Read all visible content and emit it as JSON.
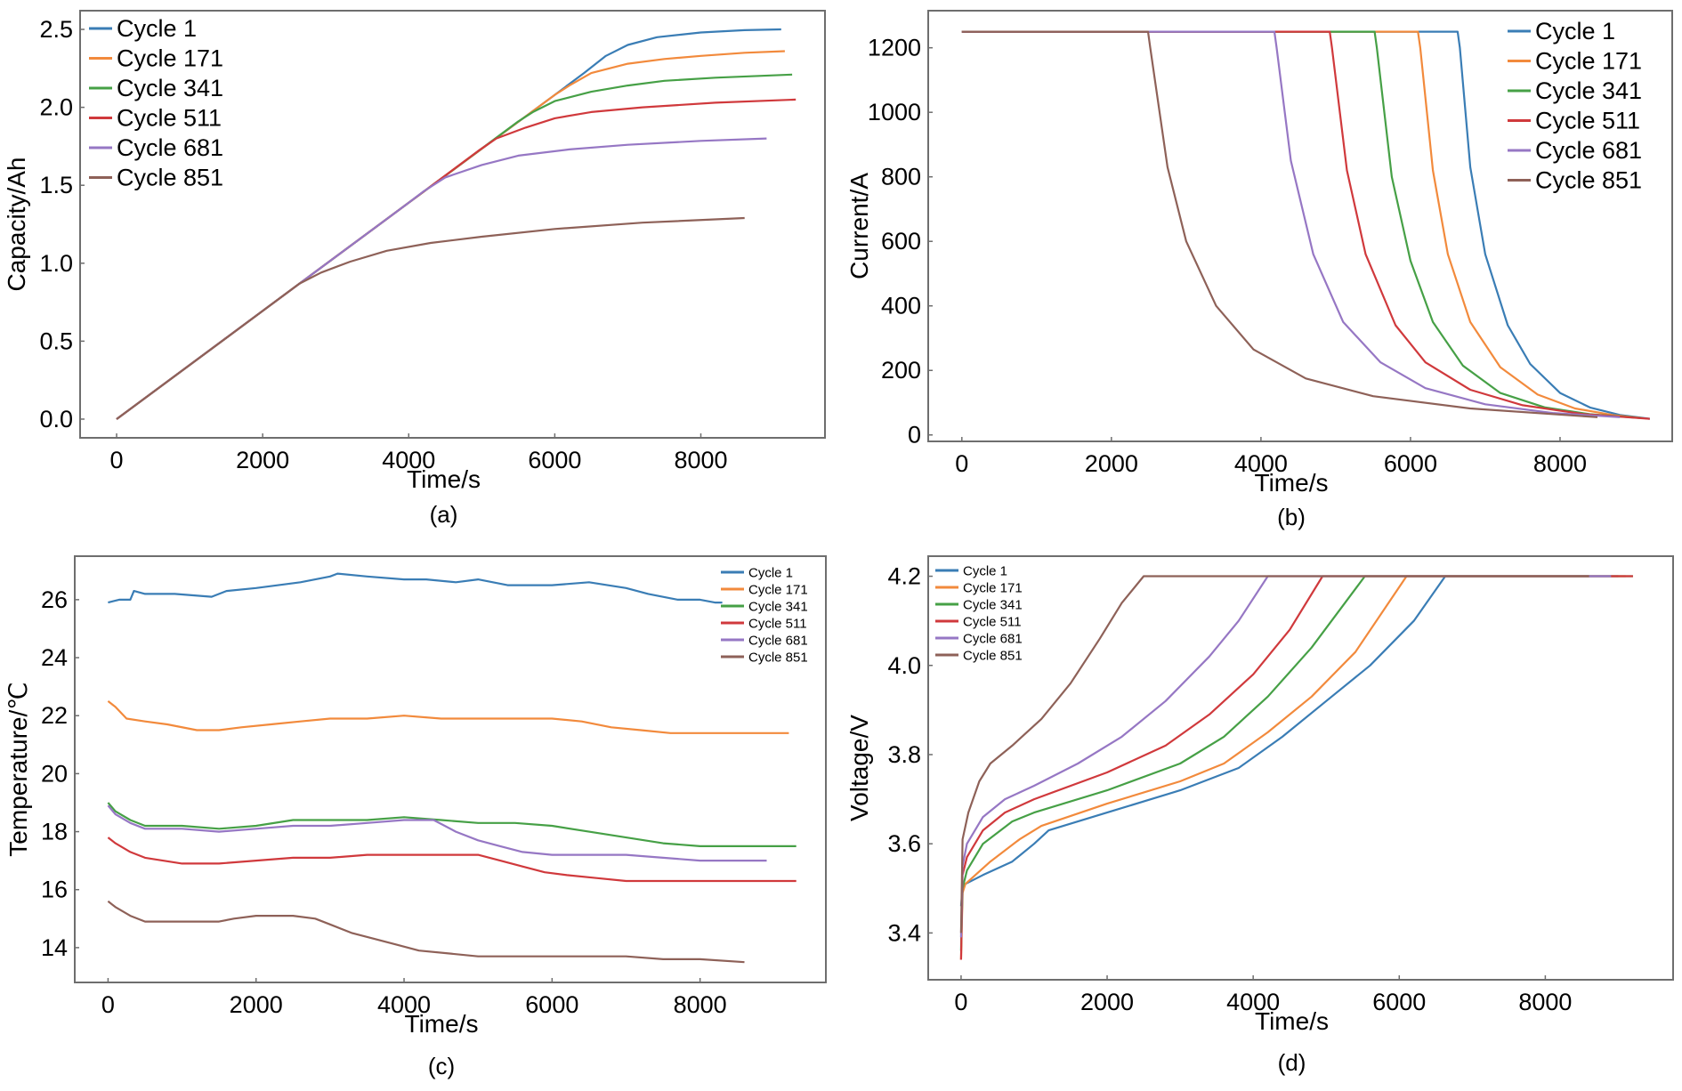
{
  "colors": {
    "Cycle 1": "#3a7db5",
    "Cycle 171": "#f28a3c",
    "Cycle 341": "#46a046",
    "Cycle 511": "#d0393c",
    "Cycle 681": "#9677c4",
    "Cycle 851": "#8e6158"
  },
  "chart_data": [
    {
      "id": "a",
      "type": "line",
      "caption": "(a)",
      "title": "",
      "xlabel": "Time/s",
      "ylabel": "Capacity/Ah",
      "xlim": [
        -500,
        9700
      ],
      "ylim": [
        -0.12,
        2.62
      ],
      "xticks": [
        0,
        2000,
        4000,
        6000,
        8000
      ],
      "xtick_labels": [
        "0",
        "2000",
        "4000",
        "6000",
        "8000"
      ],
      "yticks": [
        0.0,
        0.5,
        1.0,
        1.5,
        2.0,
        2.5
      ],
      "ytick_labels": [
        "0.0",
        "0.5",
        "1.0",
        "1.5",
        "2.0",
        "2.5"
      ],
      "legend_position": "top-left",
      "legend_size": "large",
      "grid": false,
      "series": [
        {
          "name": "Cycle 1",
          "x": [
            0,
            2000,
            4000,
            6000,
            6400,
            6700,
            7000,
            7400,
            8000,
            8600,
            9100
          ],
          "y": [
            0,
            0.694,
            1.388,
            2.08,
            2.22,
            2.33,
            2.4,
            2.45,
            2.48,
            2.495,
            2.5
          ]
        },
        {
          "name": "Cycle 171",
          "x": [
            0,
            2000,
            4000,
            6000,
            6200,
            6500,
            7000,
            7500,
            8000,
            8600,
            9150
          ],
          "y": [
            0,
            0.694,
            1.388,
            2.08,
            2.14,
            2.22,
            2.28,
            2.31,
            2.33,
            2.35,
            2.36
          ]
        },
        {
          "name": "Cycle 341",
          "x": [
            0,
            2000,
            4000,
            5500,
            5700,
            6000,
            6500,
            7000,
            7500,
            8200,
            9250
          ],
          "y": [
            0,
            0.694,
            1.388,
            1.91,
            1.97,
            2.04,
            2.1,
            2.14,
            2.17,
            2.19,
            2.21
          ]
        },
        {
          "name": "Cycle 511",
          "x": [
            0,
            2000,
            4000,
            4950,
            5200,
            5600,
            6000,
            6500,
            7200,
            8200,
            9300
          ],
          "y": [
            0,
            0.694,
            1.388,
            1.72,
            1.8,
            1.87,
            1.93,
            1.97,
            2.0,
            2.03,
            2.05
          ]
        },
        {
          "name": "Cycle 681",
          "x": [
            0,
            2000,
            4000,
            4200,
            4500,
            5000,
            5500,
            6200,
            7000,
            8000,
            8900
          ],
          "y": [
            0,
            0.694,
            1.388,
            1.46,
            1.55,
            1.63,
            1.69,
            1.73,
            1.76,
            1.785,
            1.8
          ]
        },
        {
          "name": "Cycle 851",
          "x": [
            0,
            1500,
            2500,
            2800,
            3200,
            3700,
            4300,
            5000,
            6000,
            7200,
            8600
          ],
          "y": [
            0,
            0.52,
            0.868,
            0.94,
            1.01,
            1.08,
            1.13,
            1.17,
            1.22,
            1.26,
            1.29
          ]
        }
      ]
    },
    {
      "id": "b",
      "type": "line",
      "caption": "(b)",
      "title": "",
      "xlabel": "Time/s",
      "ylabel": "Current/A",
      "xlim": [
        -450,
        9500
      ],
      "ylim": [
        -20,
        1315
      ],
      "xticks": [
        0,
        2000,
        4000,
        6000,
        8000
      ],
      "xtick_labels": [
        "0",
        "2000",
        "4000",
        "6000",
        "8000"
      ],
      "yticks": [
        0,
        200,
        400,
        600,
        800,
        1000,
        1200
      ],
      "ytick_labels": [
        "0",
        "200",
        "400",
        "600",
        "800",
        "1000",
        "1200"
      ],
      "legend_position": "top-right",
      "legend_size": "large",
      "grid": false,
      "series": [
        {
          "name": "Cycle 1",
          "x": [
            0,
            6630,
            6660,
            6800,
            7000,
            7300,
            7600,
            8000,
            8400,
            8800,
            9200
          ],
          "y": [
            1250,
            1250,
            1200,
            830,
            560,
            340,
            220,
            130,
            85,
            62,
            50
          ]
        },
        {
          "name": "Cycle 171",
          "x": [
            0,
            6100,
            6130,
            6300,
            6500,
            6800,
            7200,
            7700,
            8200,
            8700,
            9100
          ],
          "y": [
            1250,
            1250,
            1200,
            820,
            560,
            350,
            210,
            125,
            82,
            62,
            52
          ]
        },
        {
          "name": "Cycle 341",
          "x": [
            0,
            5520,
            5550,
            5750,
            6000,
            6300,
            6700,
            7200,
            7800,
            8400,
            9100
          ],
          "y": [
            1250,
            1250,
            1200,
            800,
            540,
            350,
            215,
            130,
            85,
            64,
            52
          ]
        },
        {
          "name": "Cycle 511",
          "x": [
            0,
            4920,
            4950,
            5150,
            5400,
            5800,
            6200,
            6800,
            7500,
            8300,
            9200
          ],
          "y": [
            1250,
            1250,
            1200,
            820,
            560,
            340,
            225,
            140,
            92,
            65,
            50
          ]
        },
        {
          "name": "Cycle 681",
          "x": [
            0,
            4180,
            4210,
            4400,
            4700,
            5100,
            5600,
            6200,
            7000,
            7900,
            8800
          ],
          "y": [
            1250,
            1250,
            1200,
            850,
            560,
            350,
            225,
            145,
            95,
            68,
            55
          ]
        },
        {
          "name": "Cycle 851",
          "x": [
            0,
            2490,
            2520,
            2750,
            3000,
            3400,
            3900,
            4600,
            5500,
            6800,
            8500
          ],
          "y": [
            1250,
            1250,
            1200,
            830,
            600,
            400,
            265,
            175,
            120,
            82,
            55
          ]
        }
      ]
    },
    {
      "id": "c",
      "type": "line",
      "caption": "(c)",
      "title": "",
      "xlabel": "Time/s",
      "ylabel": "Temperature/℃",
      "xlim": [
        -450,
        9700
      ],
      "ylim": [
        12.8,
        27.5
      ],
      "xticks": [
        0,
        2000,
        4000,
        6000,
        8000
      ],
      "xtick_labels": [
        "0",
        "2000",
        "4000",
        "6000",
        "8000"
      ],
      "yticks": [
        14,
        16,
        18,
        20,
        22,
        24,
        26
      ],
      "ytick_labels": [
        "14",
        "16",
        "18",
        "20",
        "22",
        "24",
        "26"
      ],
      "legend_position": "top-right",
      "legend_size": "small",
      "grid": false,
      "series": [
        {
          "name": "Cycle 1",
          "x": [
            0,
            150,
            300,
            350,
            500,
            900,
            1400,
            1600,
            2000,
            2600,
            3000,
            3100,
            3500,
            4000,
            4300,
            4700,
            5000,
            5400,
            6000,
            6500,
            7000,
            7300,
            7700,
            8000,
            8200,
            8300
          ],
          "y": [
            25.9,
            26.0,
            26.0,
            26.3,
            26.2,
            26.2,
            26.1,
            26.3,
            26.4,
            26.6,
            26.8,
            26.9,
            26.8,
            26.7,
            26.7,
            26.6,
            26.7,
            26.5,
            26.5,
            26.6,
            26.4,
            26.2,
            26.0,
            26.0,
            25.9,
            25.9
          ]
        },
        {
          "name": "Cycle 171",
          "x": [
            0,
            100,
            250,
            500,
            800,
            1200,
            1500,
            1800,
            2200,
            2600,
            3000,
            3500,
            4000,
            4500,
            5000,
            5600,
            6000,
            6400,
            6800,
            7200,
            7600,
            8000,
            8600,
            9200
          ],
          "y": [
            22.5,
            22.3,
            21.9,
            21.8,
            21.7,
            21.5,
            21.5,
            21.6,
            21.7,
            21.8,
            21.9,
            21.9,
            22.0,
            21.9,
            21.9,
            21.9,
            21.9,
            21.8,
            21.6,
            21.5,
            21.4,
            21.4,
            21.4,
            21.4
          ]
        },
        {
          "name": "Cycle 341",
          "x": [
            0,
            100,
            300,
            500,
            1000,
            1500,
            2000,
            2500,
            3000,
            3500,
            4000,
            4500,
            5000,
            5500,
            6000,
            6500,
            7000,
            7500,
            8000,
            8500,
            9000,
            9300
          ],
          "y": [
            19.0,
            18.7,
            18.4,
            18.2,
            18.2,
            18.1,
            18.2,
            18.4,
            18.4,
            18.4,
            18.5,
            18.4,
            18.3,
            18.3,
            18.2,
            18.0,
            17.8,
            17.6,
            17.5,
            17.5,
            17.5,
            17.5
          ]
        },
        {
          "name": "Cycle 681",
          "x": [
            0,
            100,
            300,
            500,
            1000,
            1500,
            2000,
            2500,
            3000,
            3500,
            4000,
            4400,
            4700,
            5000,
            5300,
            5600,
            6000,
            6500,
            7000,
            7500,
            8000,
            8500,
            8900
          ],
          "y": [
            18.9,
            18.6,
            18.3,
            18.1,
            18.1,
            18.0,
            18.1,
            18.2,
            18.2,
            18.3,
            18.4,
            18.4,
            18.0,
            17.7,
            17.5,
            17.3,
            17.2,
            17.2,
            17.2,
            17.1,
            17.0,
            17.0,
            17.0
          ]
        },
        {
          "name": "Cycle 511",
          "x": [
            0,
            100,
            300,
            500,
            1000,
            1500,
            2000,
            2500,
            3000,
            3500,
            4000,
            4500,
            5000,
            5300,
            5600,
            5900,
            6200,
            6600,
            7000,
            7500,
            8000,
            8500,
            9300
          ],
          "y": [
            17.8,
            17.6,
            17.3,
            17.1,
            16.9,
            16.9,
            17.0,
            17.1,
            17.1,
            17.2,
            17.2,
            17.2,
            17.2,
            17.0,
            16.8,
            16.6,
            16.5,
            16.4,
            16.3,
            16.3,
            16.3,
            16.3,
            16.3
          ]
        },
        {
          "name": "Cycle 851",
          "x": [
            0,
            100,
            300,
            500,
            1000,
            1500,
            1700,
            2000,
            2500,
            2800,
            3000,
            3300,
            3600,
            3900,
            4200,
            4600,
            5000,
            5500,
            6000,
            6500,
            7000,
            7500,
            8000,
            8600
          ],
          "y": [
            15.6,
            15.4,
            15.1,
            14.9,
            14.9,
            14.9,
            15.0,
            15.1,
            15.1,
            15.0,
            14.8,
            14.5,
            14.3,
            14.1,
            13.9,
            13.8,
            13.7,
            13.7,
            13.7,
            13.7,
            13.7,
            13.6,
            13.6,
            13.5
          ]
        }
      ]
    },
    {
      "id": "d",
      "type": "line",
      "caption": "(d)",
      "title": "",
      "xlabel": "Time/s",
      "ylabel": "Voltage/V",
      "xlim": [
        -450,
        9750
      ],
      "ylim": [
        3.295,
        4.245
      ],
      "xticks": [
        0,
        2000,
        4000,
        6000,
        8000
      ],
      "xtick_labels": [
        "0",
        "2000",
        "4000",
        "6000",
        "8000"
      ],
      "yticks": [
        3.4,
        3.6,
        3.8,
        4.0,
        4.2
      ],
      "ytick_labels": [
        "3.4",
        "3.6",
        "3.8",
        "4.0",
        "4.2"
      ],
      "legend_position": "top-left",
      "legend_size": "small",
      "grid": false,
      "series": [
        {
          "name": "Cycle 1",
          "x": [
            0,
            20,
            60,
            300,
            700,
            1000,
            1200,
            2000,
            3000,
            3800,
            4400,
            5000,
            5600,
            6200,
            6630,
            9000
          ],
          "y": [
            3.46,
            3.5,
            3.51,
            3.53,
            3.56,
            3.6,
            3.63,
            3.67,
            3.72,
            3.77,
            3.84,
            3.92,
            4.0,
            4.1,
            4.2,
            4.2
          ]
        },
        {
          "name": "Cycle 171",
          "x": [
            0,
            20,
            60,
            400,
            800,
            1100,
            2000,
            3000,
            3600,
            4200,
            4800,
            5400,
            6100,
            9100
          ],
          "y": [
            3.34,
            3.49,
            3.51,
            3.56,
            3.61,
            3.64,
            3.69,
            3.74,
            3.78,
            3.85,
            3.93,
            4.03,
            4.2,
            4.2
          ]
        },
        {
          "name": "Cycle 341",
          "x": [
            0,
            20,
            80,
            300,
            700,
            1000,
            2000,
            3000,
            3600,
            4200,
            4800,
            5530,
            9200
          ],
          "y": [
            3.36,
            3.5,
            3.54,
            3.6,
            3.65,
            3.67,
            3.72,
            3.78,
            3.84,
            3.93,
            4.04,
            4.2,
            4.2
          ]
        },
        {
          "name": "Cycle 511",
          "x": [
            0,
            20,
            80,
            300,
            600,
            1000,
            2000,
            2800,
            3400,
            4000,
            4500,
            4950,
            9200
          ],
          "y": [
            3.34,
            3.53,
            3.57,
            3.63,
            3.67,
            3.7,
            3.76,
            3.82,
            3.89,
            3.98,
            4.08,
            4.2,
            4.2
          ]
        },
        {
          "name": "Cycle 681",
          "x": [
            0,
            20,
            80,
            300,
            600,
            1000,
            1600,
            2200,
            2800,
            3400,
            3800,
            4200,
            8900
          ],
          "y": [
            3.39,
            3.55,
            3.6,
            3.66,
            3.7,
            3.73,
            3.78,
            3.84,
            3.92,
            4.02,
            4.1,
            4.2,
            4.2
          ]
        },
        {
          "name": "Cycle 851",
          "x": [
            0,
            20,
            100,
            250,
            400,
            700,
            1100,
            1500,
            1900,
            2200,
            2500,
            8600
          ],
          "y": [
            3.4,
            3.61,
            3.67,
            3.74,
            3.78,
            3.82,
            3.88,
            3.96,
            4.06,
            4.14,
            4.2,
            4.2
          ]
        }
      ]
    }
  ]
}
